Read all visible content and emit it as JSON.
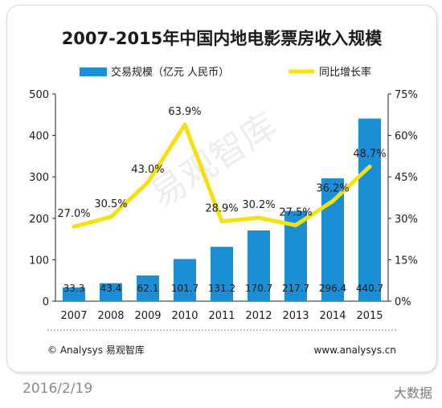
{
  "chart_data": {
    "type": "bar",
    "title": "2007-2015年中国内地电影票房收入规模",
    "categories": [
      "2007",
      "2008",
      "2009",
      "2010",
      "2011",
      "2012",
      "2013",
      "2014",
      "2015"
    ],
    "series": [
      {
        "name": "交易规模（亿元 人民币）",
        "type": "bar",
        "axis": "left",
        "values": [
          33.3,
          43.4,
          62.1,
          101.7,
          131.2,
          170.7,
          217.7,
          296.4,
          440.7
        ],
        "labels": [
          "33.3",
          "43.4",
          "62.1",
          "101.7",
          "131.2",
          "170.7",
          "217.7",
          "296.4",
          "440.7"
        ],
        "color": "#1b8fd6"
      },
      {
        "name": "同比增长率",
        "type": "line",
        "axis": "right",
        "values": [
          27.0,
          30.5,
          43.0,
          63.9,
          28.9,
          30.2,
          27.5,
          36.2,
          48.7
        ],
        "labels": [
          "27.0%",
          "30.5%",
          "43.0%",
          "63.9%",
          "28.9%",
          "30.2%",
          "27.5%",
          "36.2%",
          "48.7%"
        ],
        "color": "#f5e10c"
      }
    ],
    "y_left": {
      "ticks": [
        "0",
        "100",
        "200",
        "300",
        "400",
        "500"
      ],
      "ylim": [
        0,
        500
      ]
    },
    "y_right": {
      "ticks": [
        "0%",
        "15%",
        "30%",
        "45%",
        "60%",
        "75%"
      ],
      "ylim": [
        0,
        75
      ]
    },
    "legend_position": "top",
    "grid": false
  },
  "footer": {
    "source": "© Analysys 易观智库",
    "website": "www.analysys.cn"
  },
  "watermark": "易观智库",
  "page": {
    "date": "2016/2/19",
    "tag": "大数据"
  }
}
